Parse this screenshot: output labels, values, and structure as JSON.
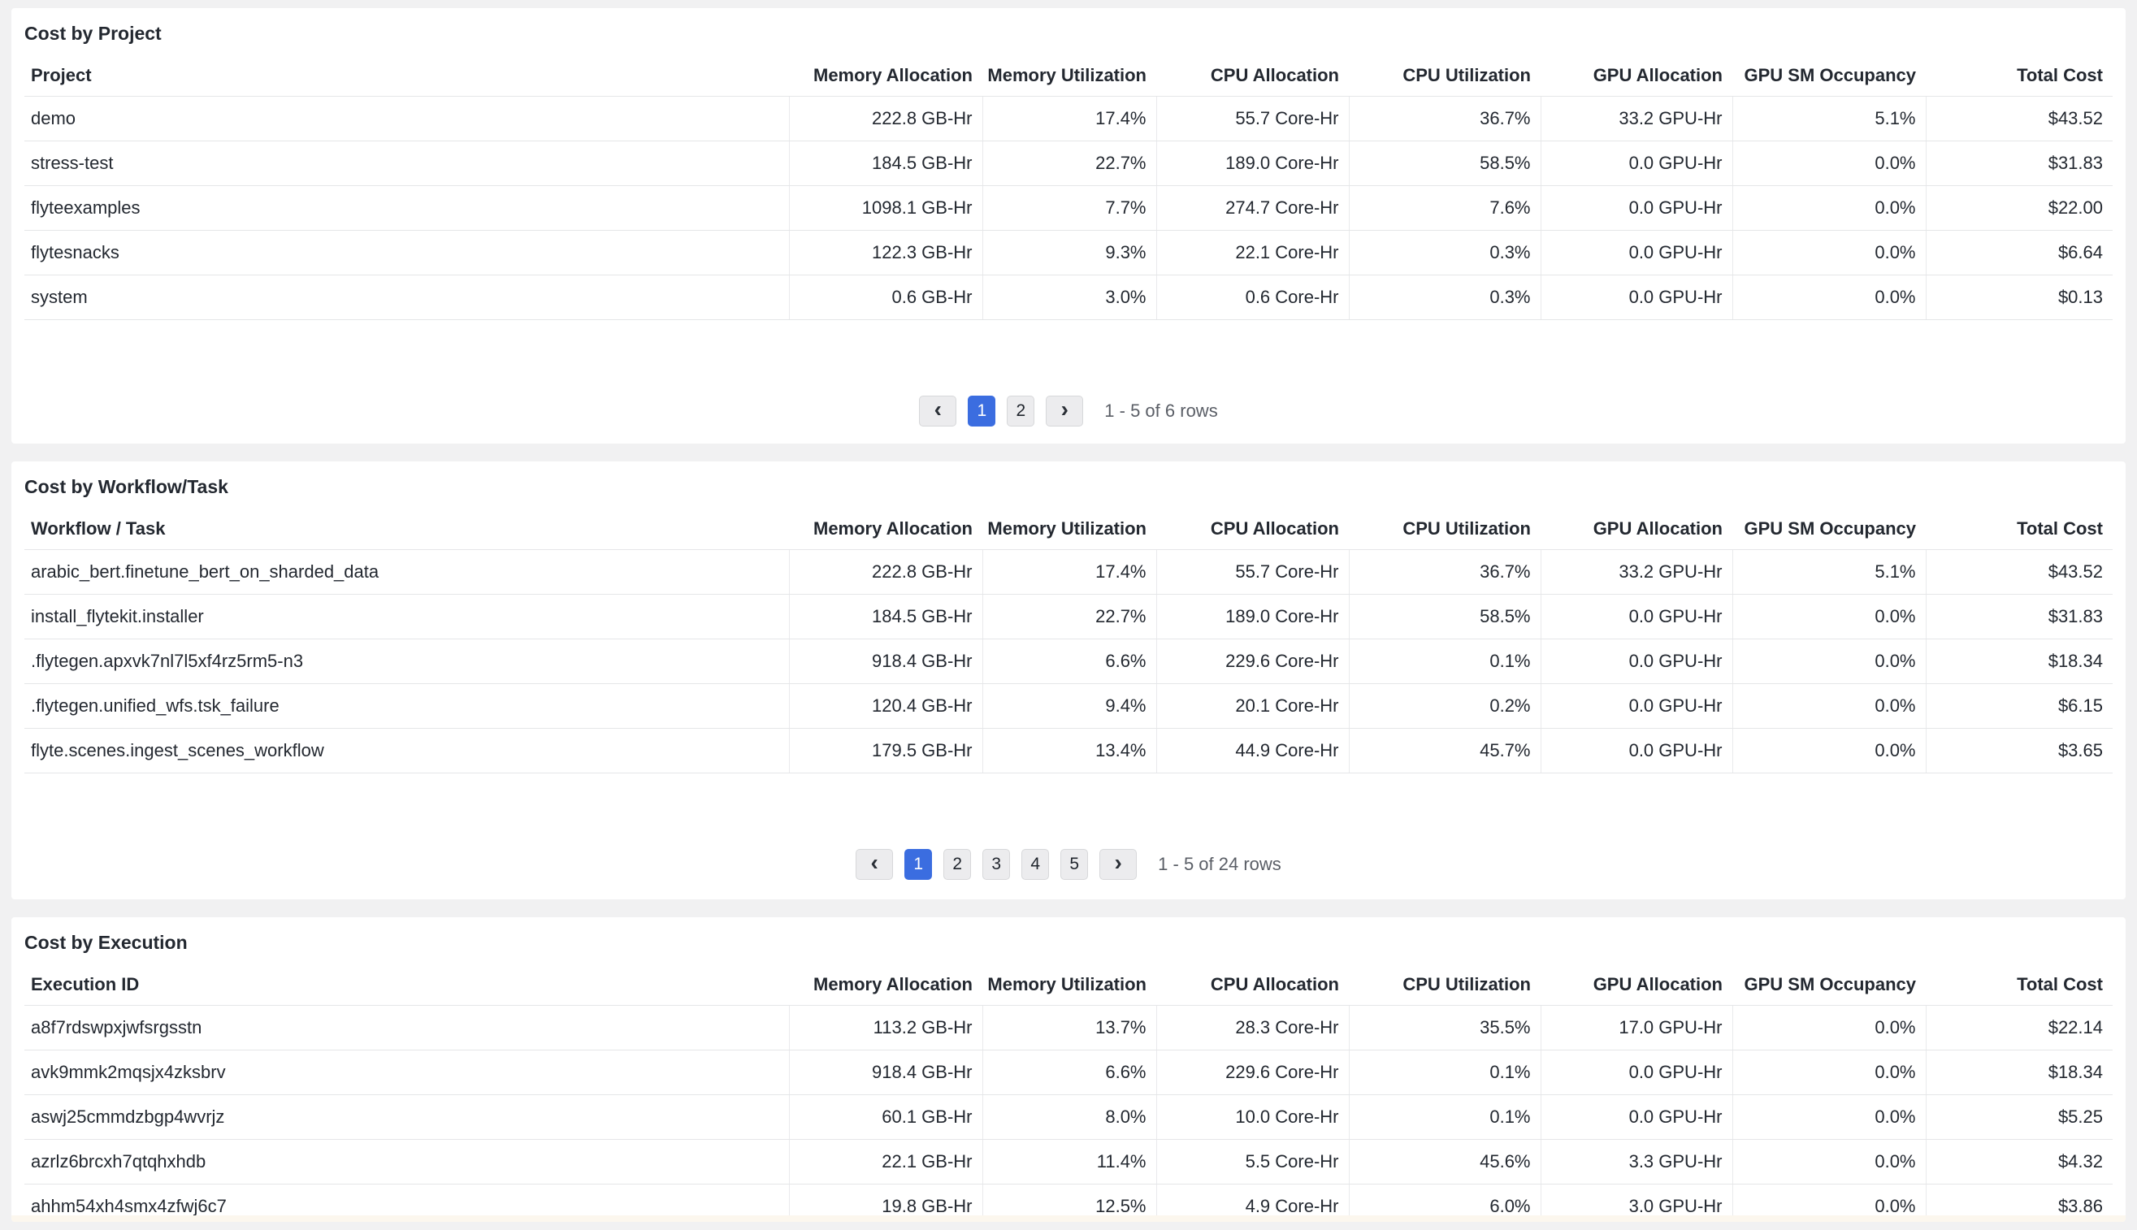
{
  "colors": {
    "page_bg": "#f1f1f2",
    "panel_bg": "#ffffff",
    "text": "#232830",
    "muted": "#5a5e66",
    "line": "#e5e6e8",
    "vline": "#e9eaec",
    "accent": "#3b6de0",
    "btn_bg": "#ececee",
    "btn_border": "#d7d8da",
    "strip": "#fcf7ee"
  },
  "tables": [
    {
      "title": "Cost by Project",
      "first_column_header": "Project",
      "column_headers": [
        "Memory Allocation",
        "Memory Utilization",
        "CPU Allocation",
        "CPU Utilization",
        "GPU Allocation",
        "GPU SM Occupancy",
        "Total Cost"
      ],
      "rows": [
        {
          "name": "demo",
          "values": [
            "222.8 GB-Hr",
            "17.4%",
            "55.7 Core-Hr",
            "36.7%",
            "33.2 GPU-Hr",
            "5.1%",
            "$43.52"
          ]
        },
        {
          "name": "stress-test",
          "values": [
            "184.5 GB-Hr",
            "22.7%",
            "189.0 Core-Hr",
            "58.5%",
            "0.0 GPU-Hr",
            "0.0%",
            "$31.83"
          ]
        },
        {
          "name": "flyteexamples",
          "values": [
            "1098.1 GB-Hr",
            "7.7%",
            "274.7 Core-Hr",
            "7.6%",
            "0.0 GPU-Hr",
            "0.0%",
            "$22.00"
          ]
        },
        {
          "name": "flytesnacks",
          "values": [
            "122.3 GB-Hr",
            "9.3%",
            "22.1 Core-Hr",
            "0.3%",
            "0.0 GPU-Hr",
            "0.0%",
            "$6.64"
          ]
        },
        {
          "name": "system",
          "values": [
            "0.6 GB-Hr",
            "3.0%",
            "0.6 Core-Hr",
            "0.3%",
            "0.0 GPU-Hr",
            "0.0%",
            "$0.13"
          ]
        }
      ],
      "pagination": {
        "prev_label": "‹",
        "next_label": "›",
        "pages": [
          "1",
          "2"
        ],
        "active_page": "1",
        "range_text": "1 - 5 of 6 rows"
      }
    },
    {
      "title": "Cost by Workflow/Task",
      "first_column_header": "Workflow / Task",
      "column_headers": [
        "Memory Allocation",
        "Memory Utilization",
        "CPU Allocation",
        "CPU Utilization",
        "GPU Allocation",
        "GPU SM Occupancy",
        "Total Cost"
      ],
      "rows": [
        {
          "name": "arabic_bert.finetune_bert_on_sharded_data",
          "values": [
            "222.8 GB-Hr",
            "17.4%",
            "55.7 Core-Hr",
            "36.7%",
            "33.2 GPU-Hr",
            "5.1%",
            "$43.52"
          ]
        },
        {
          "name": "install_flytekit.installer",
          "values": [
            "184.5 GB-Hr",
            "22.7%",
            "189.0 Core-Hr",
            "58.5%",
            "0.0 GPU-Hr",
            "0.0%",
            "$31.83"
          ]
        },
        {
          "name": ".flytegen.apxvk7nl7l5xf4rz5rm5-n3",
          "values": [
            "918.4 GB-Hr",
            "6.6%",
            "229.6 Core-Hr",
            "0.1%",
            "0.0 GPU-Hr",
            "0.0%",
            "$18.34"
          ]
        },
        {
          "name": ".flytegen.unified_wfs.tsk_failure",
          "values": [
            "120.4 GB-Hr",
            "9.4%",
            "20.1 Core-Hr",
            "0.2%",
            "0.0 GPU-Hr",
            "0.0%",
            "$6.15"
          ]
        },
        {
          "name": "flyte.scenes.ingest_scenes_workflow",
          "values": [
            "179.5 GB-Hr",
            "13.4%",
            "44.9 Core-Hr",
            "45.7%",
            "0.0 GPU-Hr",
            "0.0%",
            "$3.65"
          ]
        }
      ],
      "pagination": {
        "prev_label": "‹",
        "next_label": "›",
        "pages": [
          "1",
          "2",
          "3",
          "4",
          "5"
        ],
        "active_page": "1",
        "range_text": "1 - 5 of 24 rows"
      }
    },
    {
      "title": "Cost by Execution",
      "first_column_header": "Execution ID",
      "column_headers": [
        "Memory Allocation",
        "Memory Utilization",
        "CPU Allocation",
        "CPU Utilization",
        "GPU Allocation",
        "GPU SM Occupancy",
        "Total Cost"
      ],
      "rows": [
        {
          "name": "a8f7rdswpxjwfsrgsstn",
          "values": [
            "113.2 GB-Hr",
            "13.7%",
            "28.3 Core-Hr",
            "35.5%",
            "17.0 GPU-Hr",
            "0.0%",
            "$22.14"
          ]
        },
        {
          "name": "avk9mmk2mqsjx4zksbrv",
          "values": [
            "918.4 GB-Hr",
            "6.6%",
            "229.6 Core-Hr",
            "0.1%",
            "0.0 GPU-Hr",
            "0.0%",
            "$18.34"
          ]
        },
        {
          "name": "aswj25cmmdzbgp4wvrjz",
          "values": [
            "60.1 GB-Hr",
            "8.0%",
            "10.0 Core-Hr",
            "0.1%",
            "0.0 GPU-Hr",
            "0.0%",
            "$5.25"
          ]
        },
        {
          "name": "azrlz6brcxh7qtqhxhdb",
          "values": [
            "22.1 GB-Hr",
            "11.4%",
            "5.5 Core-Hr",
            "45.6%",
            "3.3 GPU-Hr",
            "0.0%",
            "$4.32"
          ]
        },
        {
          "name": "ahhm54xh4smx4zfwj6c7",
          "values": [
            "19.8 GB-Hr",
            "12.5%",
            "4.9 Core-Hr",
            "6.0%",
            "3.0 GPU-Hr",
            "0.0%",
            "$3.86"
          ]
        }
      ],
      "pagination": null
    }
  ]
}
